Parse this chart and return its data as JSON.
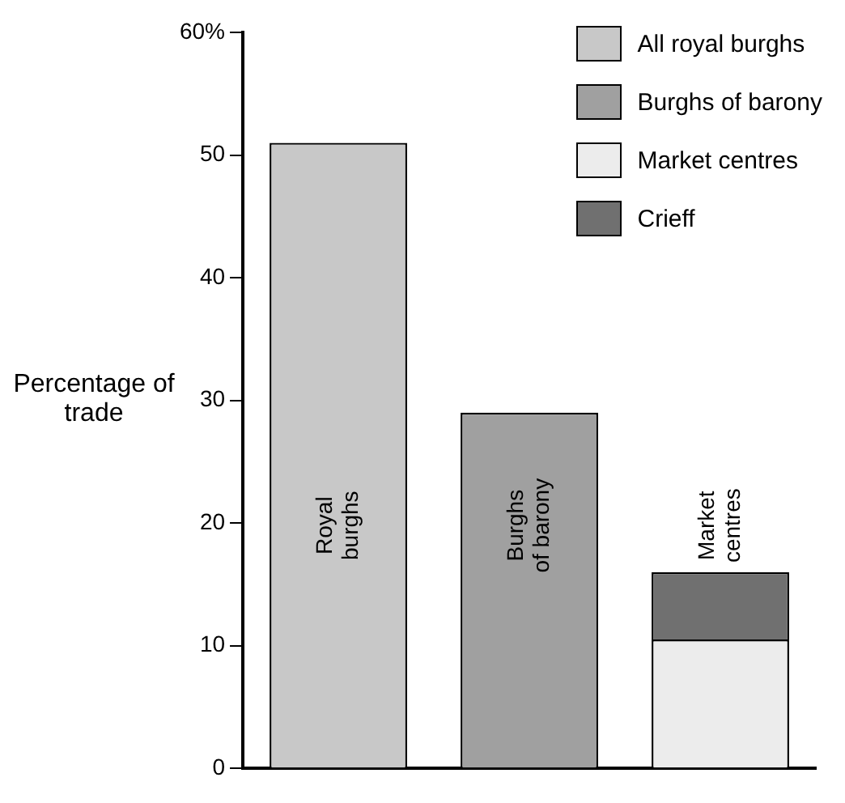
{
  "chart_data": {
    "type": "bar",
    "stacked": true,
    "ylabel": "Percentage of trade",
    "categories": [
      "Royal burghs",
      "Burghs of barony",
      "Market centres"
    ],
    "series": [
      {
        "name": "All royal burghs",
        "color": "#c8c8c8",
        "values": [
          51,
          null,
          null
        ]
      },
      {
        "name": "Burghs of barony",
        "color": "#a0a0a0",
        "values": [
          null,
          29,
          null
        ]
      },
      {
        "name": "Market centres",
        "color": "#ececec",
        "values": [
          null,
          null,
          10.5
        ]
      },
      {
        "name": "Crieff",
        "color": "#707070",
        "values": [
          null,
          null,
          5.5
        ]
      }
    ],
    "ylim": [
      0,
      60
    ],
    "yticks": [
      0,
      10,
      20,
      30,
      40,
      50,
      {
        "value": 60,
        "label": "60%"
      }
    ],
    "grid": false,
    "legend": "top right"
  }
}
